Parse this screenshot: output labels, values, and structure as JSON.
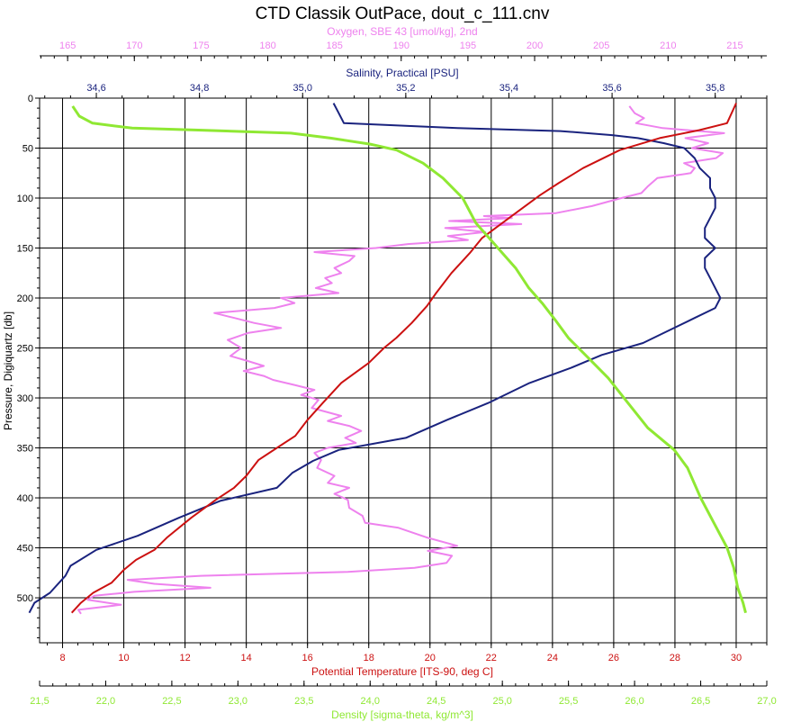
{
  "chart_data": {
    "type": "line",
    "title": "CTD Classik OutPace, dout_c_111.cnv",
    "grid": true,
    "y_axis": {
      "label": "Pressure, Digiquartz [db]",
      "range": [
        0,
        545
      ],
      "inverted": true,
      "ticks": [
        0,
        50,
        100,
        150,
        200,
        250,
        300,
        350,
        400,
        450,
        500
      ],
      "tick_labels": [
        "0",
        "50",
        "100",
        "150",
        "200",
        "250",
        "300",
        "350",
        "400",
        "450",
        "500"
      ]
    },
    "x_axes": {
      "oxygen": {
        "label": "Oxygen, SBE 43 [umol/kg], 2nd",
        "color": "#ee82ee",
        "range": [
          162.9,
          217.4
        ],
        "ticks": [
          165,
          170,
          175,
          180,
          185,
          190,
          195,
          200,
          205,
          210,
          215
        ],
        "tick_labels": [
          "165",
          "170",
          "175",
          "180",
          "185",
          "190",
          "195",
          "200",
          "205",
          "210",
          "215"
        ]
      },
      "salinity": {
        "label": "Salinity, Practical [PSU]",
        "color": "#1a237e",
        "range": [
          34.49,
          35.9
        ],
        "ticks": [
          34.6,
          34.8,
          35.0,
          35.2,
          35.4,
          35.6,
          35.8
        ],
        "tick_labels": [
          "34,6",
          "34,8",
          "35,0",
          "35,2",
          "35,4",
          "35,6",
          "35,8"
        ]
      },
      "temperature": {
        "label": "Potential Temperature [ITS-90, deg C]",
        "color": "#cc1111",
        "range": [
          7.25,
          31.0
        ],
        "ticks": [
          8,
          10,
          12,
          14,
          16,
          18,
          20,
          22,
          24,
          26,
          28,
          30
        ],
        "tick_labels": [
          "8",
          "10",
          "12",
          "14",
          "16",
          "18",
          "20",
          "22",
          "24",
          "26",
          "28",
          "30"
        ]
      },
      "density": {
        "label": "Density [sigma-theta, kg/m^3]",
        "color": "#8fe833",
        "range": [
          21.5,
          27.0
        ],
        "ticks": [
          21.5,
          22.0,
          22.5,
          23.0,
          23.5,
          24.0,
          24.5,
          25.0,
          25.5,
          26.0,
          26.5,
          27.0
        ],
        "tick_labels": [
          "21,5",
          "22,0",
          "22,5",
          "23,0",
          "23,5",
          "24,0",
          "24,5",
          "25,0",
          "25,5",
          "26,0",
          "26,5",
          "27,0"
        ]
      }
    },
    "series": [
      {
        "key": "oxygen",
        "color": "#ee82ee",
        "points": [
          [
            207.1,
            8
          ],
          [
            207.5,
            15
          ],
          [
            208.2,
            20
          ],
          [
            207.6,
            25
          ],
          [
            209.6,
            30
          ],
          [
            214.2,
            35
          ],
          [
            211.3,
            40
          ],
          [
            213.0,
            45
          ],
          [
            211.8,
            50
          ],
          [
            214.1,
            55
          ],
          [
            213.6,
            60
          ],
          [
            211.2,
            65
          ],
          [
            212.0,
            70
          ],
          [
            211.7,
            75
          ],
          [
            209.2,
            80
          ],
          [
            208.5,
            88
          ],
          [
            208.0,
            95
          ],
          [
            206.5,
            100
          ],
          [
            204.3,
            108
          ],
          [
            201.6,
            115
          ],
          [
            196.2,
            118
          ],
          [
            198.3,
            120
          ],
          [
            193.6,
            123
          ],
          [
            199.0,
            126
          ],
          [
            193.3,
            130
          ],
          [
            196.3,
            134
          ],
          [
            193.5,
            138
          ],
          [
            195.0,
            142
          ],
          [
            190.5,
            146
          ],
          [
            188.1,
            150
          ],
          [
            183.5,
            154
          ],
          [
            186.5,
            158
          ],
          [
            186.1,
            163
          ],
          [
            185.0,
            170
          ],
          [
            185.5,
            175
          ],
          [
            184.3,
            180
          ],
          [
            184.8,
            185
          ],
          [
            183.6,
            190
          ],
          [
            185.3,
            195
          ],
          [
            181.0,
            200
          ],
          [
            182.0,
            205
          ],
          [
            180.5,
            210
          ],
          [
            176.0,
            215
          ],
          [
            177.5,
            220
          ],
          [
            179.0,
            225
          ],
          [
            181.0,
            230
          ],
          [
            178.5,
            235
          ],
          [
            177.0,
            242
          ],
          [
            178.0,
            250
          ],
          [
            177.2,
            258
          ],
          [
            178.5,
            263
          ],
          [
            179.7,
            268
          ],
          [
            178.2,
            273
          ],
          [
            179.7,
            278
          ],
          [
            180.4,
            282
          ],
          [
            182.0,
            287
          ],
          [
            183.5,
            292
          ],
          [
            182.5,
            297
          ],
          [
            183.8,
            302
          ],
          [
            183.3,
            310
          ],
          [
            185.5,
            318
          ],
          [
            184.5,
            323
          ],
          [
            186.1,
            328
          ],
          [
            187.0,
            333
          ],
          [
            185.8,
            340
          ],
          [
            186.6,
            345
          ],
          [
            184.5,
            350
          ],
          [
            183.5,
            355
          ],
          [
            184.0,
            362
          ],
          [
            183.7,
            370
          ],
          [
            185.0,
            378
          ],
          [
            184.5,
            385
          ],
          [
            186.1,
            390
          ],
          [
            185.0,
            396
          ],
          [
            186.0,
            402
          ],
          [
            186.1,
            410
          ],
          [
            187.1,
            418
          ],
          [
            187.3,
            425
          ],
          [
            189.8,
            430
          ],
          [
            192.0,
            440
          ],
          [
            194.2,
            448
          ],
          [
            192.0,
            453
          ],
          [
            193.8,
            458
          ],
          [
            193.4,
            465
          ],
          [
            191.0,
            470
          ],
          [
            186.0,
            474
          ],
          [
            175.0,
            478
          ],
          [
            169.5,
            482
          ],
          [
            171.5,
            486
          ],
          [
            175.7,
            490
          ],
          [
            170.0,
            494
          ],
          [
            167.0,
            498
          ],
          [
            166.5,
            502
          ],
          [
            169.0,
            507
          ],
          [
            165.8,
            512
          ],
          [
            166.0,
            516
          ]
        ]
      },
      {
        "key": "salinity",
        "color": "#1a237e",
        "points": [
          [
            35.06,
            5
          ],
          [
            35.07,
            15
          ],
          [
            35.08,
            25
          ],
          [
            35.3,
            30
          ],
          [
            35.5,
            33
          ],
          [
            35.6,
            37
          ],
          [
            35.65,
            40
          ],
          [
            35.7,
            45
          ],
          [
            35.74,
            50
          ],
          [
            35.76,
            60
          ],
          [
            35.77,
            70
          ],
          [
            35.79,
            80
          ],
          [
            35.79,
            90
          ],
          [
            35.8,
            100
          ],
          [
            35.8,
            110
          ],
          [
            35.79,
            120
          ],
          [
            35.78,
            130
          ],
          [
            35.78,
            140
          ],
          [
            35.8,
            150
          ],
          [
            35.78,
            160
          ],
          [
            35.78,
            170
          ],
          [
            35.79,
            180
          ],
          [
            35.8,
            190
          ],
          [
            35.81,
            200
          ],
          [
            35.8,
            210
          ],
          [
            35.76,
            220
          ],
          [
            35.7,
            235
          ],
          [
            35.66,
            245
          ],
          [
            35.58,
            257
          ],
          [
            35.52,
            270
          ],
          [
            35.44,
            285
          ],
          [
            35.36,
            305
          ],
          [
            35.28,
            322
          ],
          [
            35.2,
            340
          ],
          [
            35.07,
            352
          ],
          [
            35.02,
            363
          ],
          [
            34.98,
            375
          ],
          [
            34.95,
            390
          ],
          [
            34.84,
            403
          ],
          [
            34.76,
            420
          ],
          [
            34.68,
            438
          ],
          [
            34.6,
            452
          ],
          [
            34.55,
            468
          ],
          [
            34.54,
            478
          ],
          [
            34.51,
            495
          ],
          [
            34.48,
            505
          ],
          [
            34.47,
            515
          ]
        ]
      },
      {
        "key": "temperature",
        "color": "#cc1111",
        "points": [
          [
            30.0,
            5
          ],
          [
            29.7,
            25
          ],
          [
            28.8,
            32
          ],
          [
            27.5,
            40
          ],
          [
            26.2,
            52
          ],
          [
            25.0,
            70
          ],
          [
            24.2,
            85
          ],
          [
            23.6,
            97
          ],
          [
            22.8,
            115
          ],
          [
            21.7,
            140
          ],
          [
            21.3,
            155
          ],
          [
            20.7,
            175
          ],
          [
            20.2,
            195
          ],
          [
            19.9,
            208
          ],
          [
            19.4,
            225
          ],
          [
            18.9,
            240
          ],
          [
            18.5,
            250
          ],
          [
            18.0,
            265
          ],
          [
            17.1,
            285
          ],
          [
            16.5,
            305
          ],
          [
            16.0,
            322
          ],
          [
            15.6,
            338
          ],
          [
            15.0,
            350
          ],
          [
            14.4,
            362
          ],
          [
            14.0,
            378
          ],
          [
            13.6,
            390
          ],
          [
            13.0,
            402
          ],
          [
            12.2,
            420
          ],
          [
            11.4,
            440
          ],
          [
            11.0,
            452
          ],
          [
            10.4,
            462
          ],
          [
            10.0,
            472
          ],
          [
            9.6,
            485
          ],
          [
            9.0,
            495
          ],
          [
            8.6,
            505
          ],
          [
            8.3,
            515
          ]
        ]
      },
      {
        "key": "density",
        "color": "#8fe833",
        "points": [
          [
            21.75,
            8
          ],
          [
            21.8,
            18
          ],
          [
            21.9,
            25
          ],
          [
            22.2,
            30
          ],
          [
            22.7,
            32
          ],
          [
            23.4,
            35
          ],
          [
            23.7,
            40
          ],
          [
            24.0,
            46
          ],
          [
            24.2,
            52
          ],
          [
            24.4,
            65
          ],
          [
            24.55,
            80
          ],
          [
            24.7,
            100
          ],
          [
            24.8,
            125
          ],
          [
            24.9,
            140
          ],
          [
            25.0,
            155
          ],
          [
            25.1,
            170
          ],
          [
            25.2,
            190
          ],
          [
            25.3,
            205
          ],
          [
            25.4,
            222
          ],
          [
            25.5,
            240
          ],
          [
            25.65,
            260
          ],
          [
            25.8,
            280
          ],
          [
            25.95,
            305
          ],
          [
            26.1,
            330
          ],
          [
            26.3,
            352
          ],
          [
            26.4,
            370
          ],
          [
            26.45,
            385
          ],
          [
            26.5,
            400
          ],
          [
            26.6,
            425
          ],
          [
            26.7,
            450
          ],
          [
            26.75,
            470
          ],
          [
            26.78,
            490
          ],
          [
            26.82,
            505
          ],
          [
            26.84,
            515
          ]
        ]
      }
    ]
  }
}
